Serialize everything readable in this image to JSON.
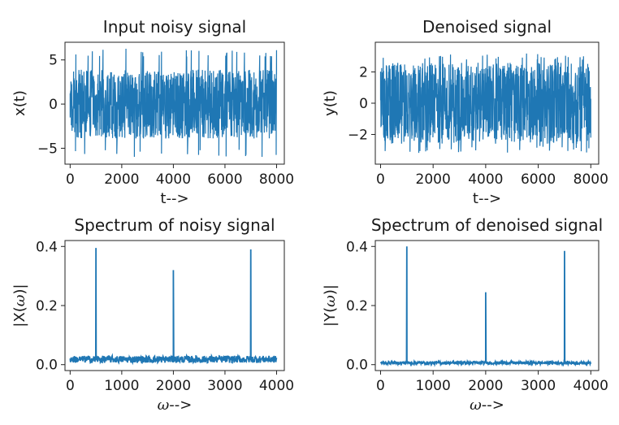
{
  "chart_data": [
    {
      "type": "line",
      "title": "Input noisy signal",
      "xlabel": "t-->",
      "ylabel": "x(t)",
      "xlim": [
        -200,
        8300
      ],
      "ylim": [
        -6.8,
        7.0
      ],
      "xticks": [
        0,
        2000,
        4000,
        6000,
        8000
      ],
      "xtick_labels": [
        "0",
        "2000",
        "4000",
        "6000",
        "8000"
      ],
      "yticks": [
        -5,
        0,
        5
      ],
      "ytick_labels": [
        "−5",
        "0",
        "5"
      ],
      "series_color": "#1f77b4",
      "signal": {
        "kind": "noise",
        "n": 8000,
        "band_half_width": 3.9,
        "peak_max": 6.3,
        "peak_min": -6.0
      }
    },
    {
      "type": "line",
      "title": "Denoised signal",
      "xlabel": "t-->",
      "ylabel": "y(t)",
      "xlim": [
        -200,
        8300
      ],
      "ylim": [
        -3.9,
        3.9
      ],
      "xticks": [
        0,
        2000,
        4000,
        6000,
        8000
      ],
      "xtick_labels": [
        "0",
        "2000",
        "4000",
        "6000",
        "8000"
      ],
      "yticks": [
        -2,
        0,
        2
      ],
      "ytick_labels": [
        "−2",
        "0",
        "2"
      ],
      "series_color": "#1f77b4",
      "signal": {
        "kind": "noise",
        "n": 8000,
        "band_half_width": 2.6,
        "peak_max": 3.2,
        "peak_min": -3.2
      }
    },
    {
      "type": "line",
      "title": "Spectrum of noisy signal",
      "xlabel_prefix": "ω",
      "xlabel_suffix": "-->",
      "ylabel_prefix": "|X(",
      "ylabel_symbol": "ω",
      "ylabel_suffix": ")|",
      "xlim": [
        -100,
        4150
      ],
      "ylim": [
        -0.02,
        0.42
      ],
      "xticks": [
        0,
        1000,
        2000,
        3000,
        4000
      ],
      "xtick_labels": [
        "0",
        "1000",
        "2000",
        "3000",
        "4000"
      ],
      "yticks": [
        0.0,
        0.2,
        0.4
      ],
      "ytick_labels": [
        "0.0",
        "0.2",
        "0.4"
      ],
      "series_color": "#1f77b4",
      "signal": {
        "kind": "spectrum",
        "n": 4000,
        "floor": 0.018,
        "floor_jitter": 0.012,
        "peaks": [
          {
            "x": 500,
            "y": 0.395
          },
          {
            "x": 2000,
            "y": 0.32
          },
          {
            "x": 3500,
            "y": 0.39
          }
        ]
      }
    },
    {
      "type": "line",
      "title": "Spectrum of denoised signal",
      "xlabel_prefix": "ω",
      "xlabel_suffix": "-->",
      "ylabel_prefix": "|Y(",
      "ylabel_symbol": "ω",
      "ylabel_suffix": ")|",
      "xlim": [
        -100,
        4150
      ],
      "ylim": [
        -0.02,
        0.42
      ],
      "xticks": [
        0,
        1000,
        2000,
        3000,
        4000
      ],
      "xtick_labels": [
        "0",
        "1000",
        "2000",
        "3000",
        "4000"
      ],
      "yticks": [
        0.0,
        0.2,
        0.4
      ],
      "ytick_labels": [
        "0.0",
        "0.2",
        "0.4"
      ],
      "series_color": "#1f77b4",
      "signal": {
        "kind": "spectrum",
        "n": 4000,
        "floor": 0.006,
        "floor_jitter": 0.005,
        "peaks": [
          {
            "x": 500,
            "y": 0.4
          },
          {
            "x": 2000,
            "y": 0.245
          },
          {
            "x": 3500,
            "y": 0.385
          }
        ]
      }
    }
  ]
}
